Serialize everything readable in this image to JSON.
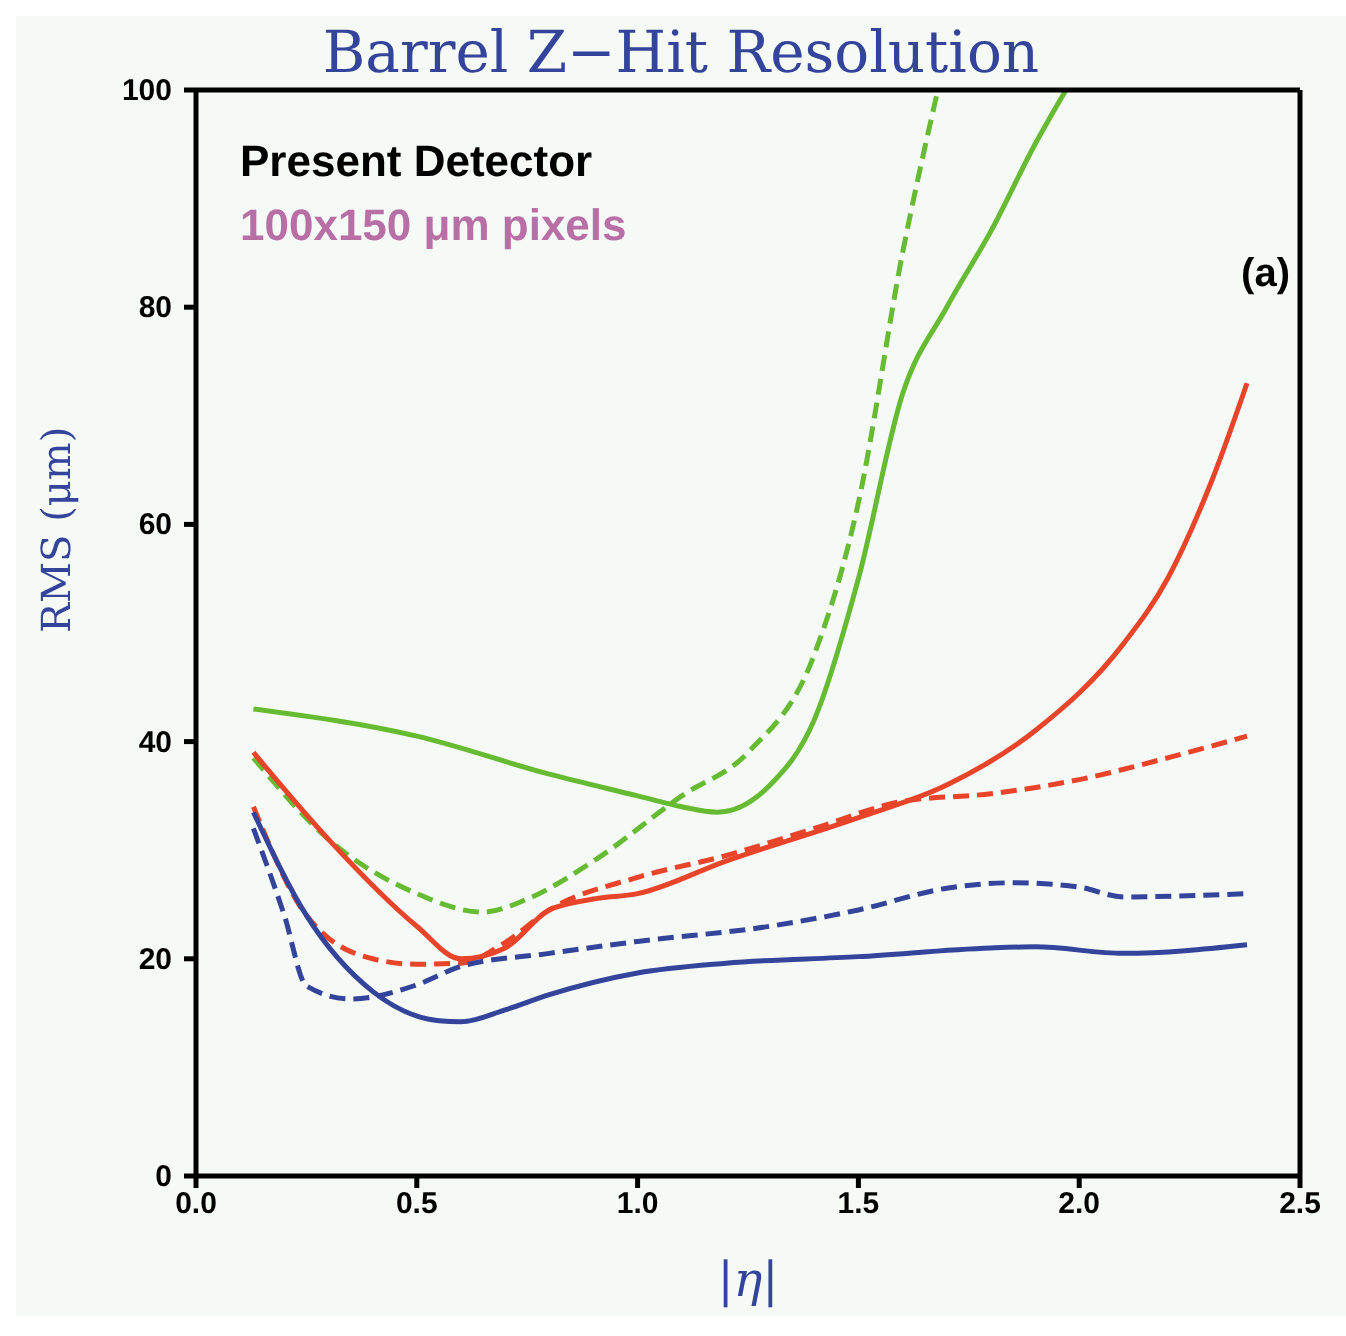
{
  "chart_data": {
    "type": "line",
    "title": "Barrel Z−Hit Resolution",
    "xlabel": "|η|",
    "ylabel": "RMS (μm)",
    "annotations": [
      "Present Detector",
      "100x150 μm pixels",
      "(a)"
    ],
    "xlim": [
      0,
      2.5
    ],
    "xticks": [
      {
        "value": 0,
        "label": "0.0"
      },
      {
        "value": 0.5,
        "label": "0.5"
      },
      {
        "value": 1,
        "label": "1.0"
      },
      {
        "value": 1.5,
        "label": "1.5"
      },
      {
        "value": 2,
        "label": "2.0"
      },
      {
        "value": 2.5,
        "label": "2.5"
      }
    ],
    "ylim": [
      0,
      100
    ],
    "yticks": [
      0,
      20,
      40,
      60,
      80,
      100
    ],
    "grid": false,
    "marker": "none",
    "series": [
      {
        "color": "#66bb33",
        "line_style": "solid",
        "x": [
          0.13,
          0.5,
          0.8,
          1.0,
          1.1,
          1.18,
          1.3,
          1.4,
          1.5,
          1.6,
          1.7,
          1.8,
          1.9,
          1.97
        ],
        "values": [
          43,
          40.5,
          37,
          35,
          34,
          33.5,
          36,
          42,
          55,
          72,
          80,
          87,
          95,
          100
        ]
      },
      {
        "color": "#66bb33",
        "line_style": "dashed",
        "x": [
          0.13,
          0.3,
          0.5,
          0.65,
          0.75,
          0.9,
          1.1,
          1.25,
          1.4,
          1.5,
          1.6,
          1.68
        ],
        "values": [
          38.5,
          31,
          26,
          24.3,
          25.5,
          29,
          35,
          39,
          48,
          62,
          85,
          100
        ]
      },
      {
        "color": "#e8442a",
        "line_style": "solid",
        "x": [
          0.13,
          0.3,
          0.5,
          0.6,
          0.7,
          0.8,
          0.9,
          1.0,
          1.2,
          1.5,
          1.7,
          1.9,
          2.1,
          2.2,
          2.3,
          2.38
        ],
        "values": [
          39,
          31,
          23,
          20,
          21,
          24.5,
          25.5,
          26,
          29,
          33,
          36,
          41,
          49,
          55,
          64,
          73
        ]
      },
      {
        "color": "#e8442a",
        "line_style": "dashed",
        "x": [
          0.13,
          0.25,
          0.4,
          0.5,
          0.6,
          0.7,
          0.8,
          1.0,
          1.2,
          1.4,
          1.6,
          1.8,
          2.0,
          2.2,
          2.38
        ],
        "values": [
          34,
          24,
          20,
          19.5,
          19.6,
          21.5,
          24.5,
          27.5,
          29.5,
          32,
          34.5,
          35.2,
          36.5,
          38.5,
          40.5
        ]
      },
      {
        "color": "#33449a",
        "line_style": "solid",
        "x": [
          0.13,
          0.25,
          0.4,
          0.55,
          0.6,
          0.7,
          0.8,
          1.0,
          1.2,
          1.5,
          1.8,
          1.9,
          2.1,
          2.38
        ],
        "values": [
          33.5,
          24,
          17,
          14.3,
          14.2,
          15.3,
          16.7,
          18.7,
          19.6,
          20.2,
          21,
          21.1,
          20.5,
          21.3
        ]
      },
      {
        "color": "#33449a",
        "line_style": "dashed",
        "x": [
          0.13,
          0.2,
          0.25,
          0.35,
          0.5,
          0.6,
          0.8,
          1.0,
          1.3,
          1.5,
          1.7,
          1.85,
          2.0,
          2.1,
          2.38
        ],
        "values": [
          32,
          24,
          17.5,
          16.3,
          17.6,
          19.3,
          20.5,
          21.6,
          23,
          24.5,
          26.5,
          27,
          26.6,
          25.7,
          26
        ]
      }
    ]
  }
}
